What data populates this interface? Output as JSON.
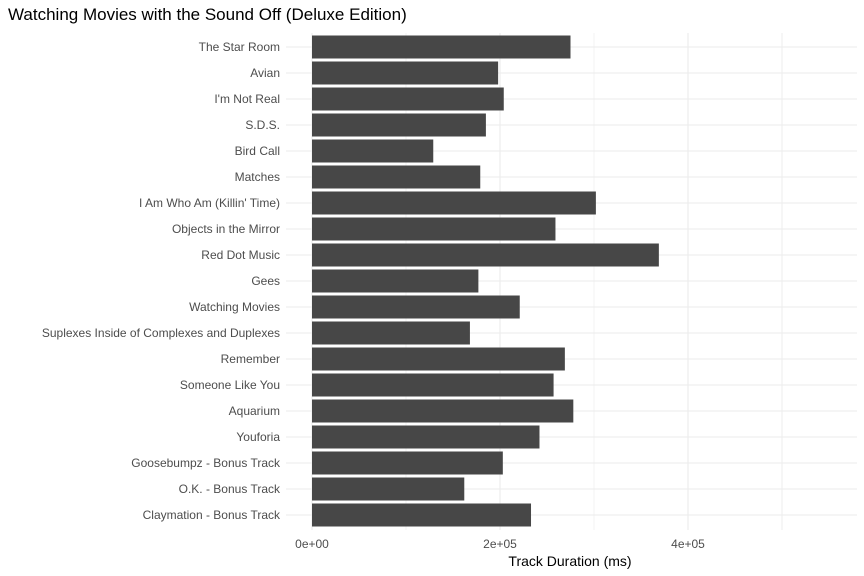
{
  "chart_data": {
    "type": "bar",
    "orientation": "horizontal",
    "title": "Watching Movies with the Sound Off (Deluxe Edition)",
    "xlabel": "Track Duration (ms)",
    "ylabel": "",
    "xlim": [
      0,
      580000
    ],
    "x_ticks": [
      0,
      200000,
      400000
    ],
    "x_tick_labels": [
      "0e+00",
      "2e+05",
      "4e+05"
    ],
    "grid": true,
    "bar_color": "#474747",
    "grid_color": "#ebebeb",
    "categories": [
      "The Star Room",
      "Avian",
      "I'm Not Real",
      "S.D.S.",
      "Bird Call",
      "Matches",
      "I Am Who Am (Killin' Time)",
      "Objects in the Mirror",
      "Red Dot Music",
      "Gees",
      "Watching Movies",
      "Suplexes Inside of Complexes and Duplexes",
      "Remember",
      "Someone Like You",
      "Aquarium",
      "Youforia",
      "Goosebumpz - Bonus Track",
      "O.K. - Bonus Track",
      "Claymation - Bonus Track"
    ],
    "values": [
      275000,
      198000,
      204000,
      185000,
      129000,
      179000,
      302000,
      259000,
      369000,
      177000,
      221000,
      168000,
      269000,
      257000,
      278000,
      242000,
      203000,
      162000,
      233000
    ]
  }
}
